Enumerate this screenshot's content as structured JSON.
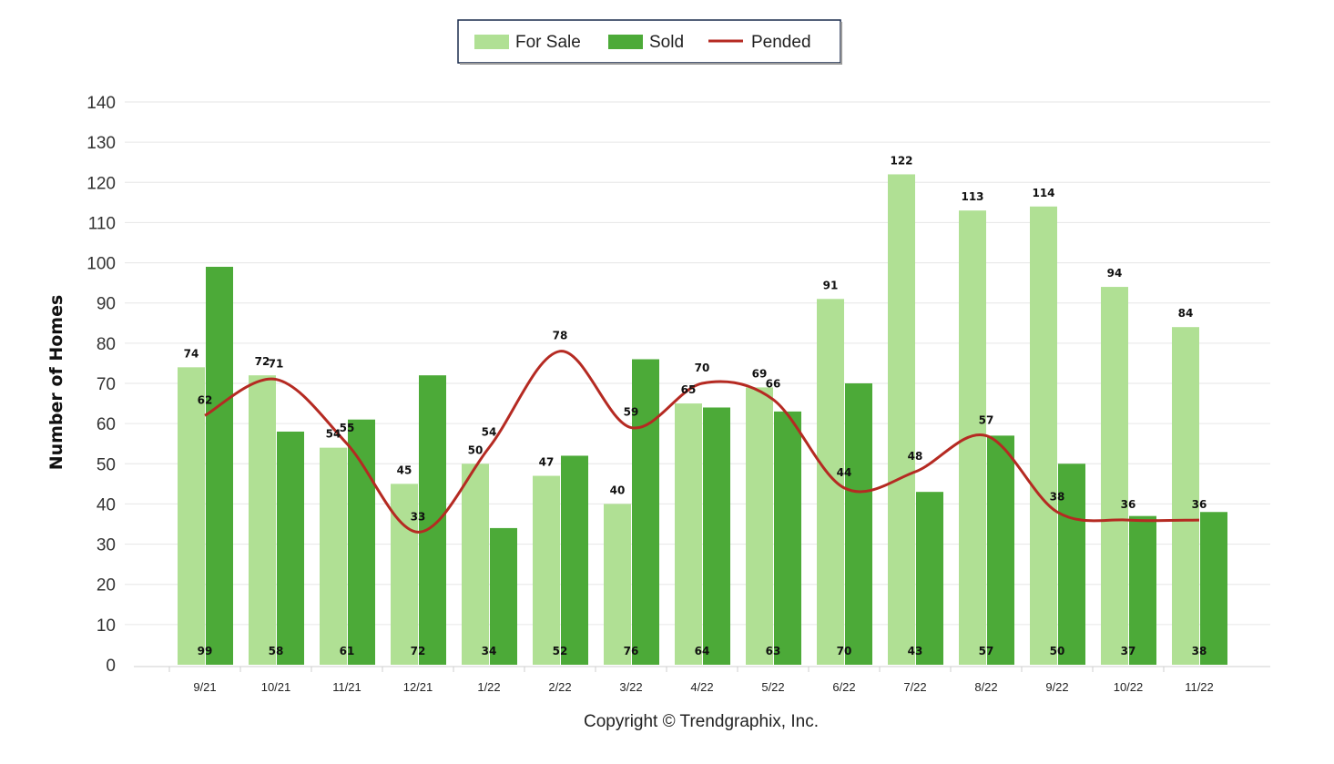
{
  "chart_data": {
    "type": "bar",
    "categories": [
      "9/21",
      "10/21",
      "11/21",
      "12/21",
      "1/22",
      "2/22",
      "3/22",
      "4/22",
      "5/22",
      "6/22",
      "7/22",
      "8/22",
      "9/22",
      "10/22",
      "11/22"
    ],
    "series": [
      {
        "name": "For Sale",
        "type": "bar",
        "color": "#b0e094",
        "values": [
          74,
          72,
          54,
          45,
          50,
          47,
          40,
          65,
          69,
          91,
          122,
          113,
          114,
          94,
          84
        ]
      },
      {
        "name": "Sold",
        "type": "bar",
        "color": "#4caa38",
        "values": [
          99,
          58,
          61,
          72,
          34,
          52,
          76,
          64,
          63,
          70,
          43,
          57,
          50,
          37,
          38
        ]
      },
      {
        "name": "Pended",
        "type": "line",
        "color": "#b52a22",
        "values": [
          62,
          71,
          55,
          33,
          54,
          78,
          59,
          70,
          66,
          44,
          48,
          57,
          38,
          36,
          36
        ]
      }
    ],
    "title": "",
    "xlabel": "",
    "ylabel": "Number of Homes",
    "ylim": [
      0,
      140
    ],
    "yticks": [
      0,
      10,
      20,
      30,
      40,
      50,
      60,
      70,
      80,
      90,
      100,
      110,
      120,
      130,
      140
    ],
    "grid": true,
    "legend": "top-center"
  },
  "footer": {
    "copyright": "Copyright © Trendgraphix, Inc."
  }
}
